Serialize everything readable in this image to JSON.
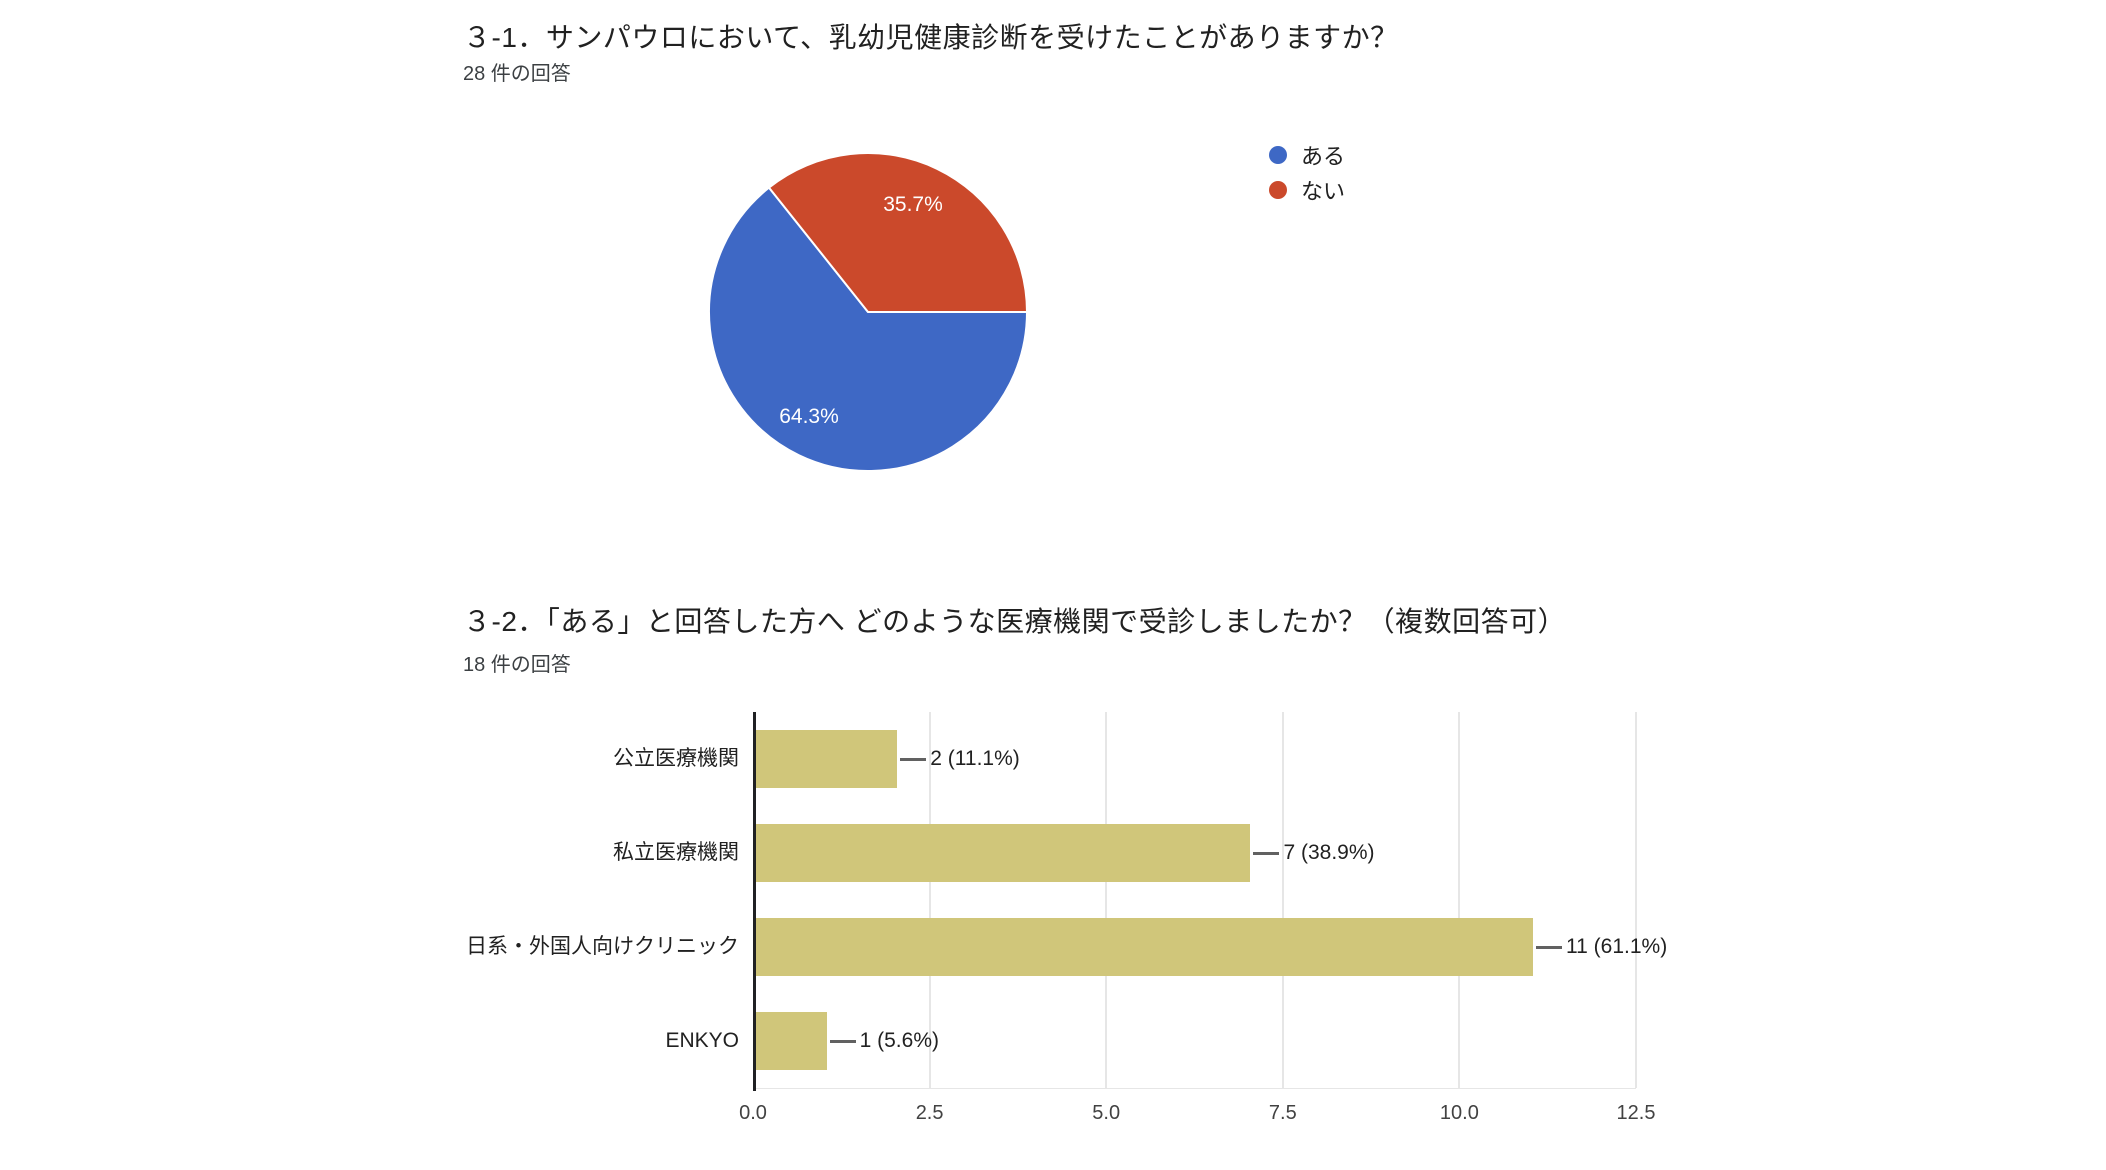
{
  "q1": {
    "title": "３-1．サンパウロにおいて、乳幼児健康診断を受けたことがありますか？",
    "responses_text": "28 件の回答",
    "responses_count": 28
  },
  "q2": {
    "title": "３-2．「ある」と回答した方へ どのような医療機関で受診しましたか？（複数回答可）",
    "responses_text": "18 件の回答",
    "responses_count": 18
  },
  "chart_data": [
    {
      "type": "pie",
      "title": "３-1．サンパウロにおいて、乳幼児健康診断を受けたことがありますか？",
      "subtitle": "28 件の回答",
      "labels": [
        "ある",
        "ない"
      ],
      "values_pct": [
        64.3,
        35.7
      ],
      "slice_labels": [
        "64.3%",
        "35.7%"
      ],
      "colors": [
        "#3e68c5",
        "#cb492b"
      ],
      "start_angle_deg": 0,
      "direction": "clockwise",
      "legend_position": "right",
      "slice_border_color": "#ffffff"
    },
    {
      "type": "bar",
      "orientation": "horizontal",
      "title": "３-2．「ある」と回答した方へ どのような医療機関で受診しましたか？（複数回答可）",
      "subtitle": "18 件の回答",
      "categories": [
        "公立医療機関",
        "私立医療機関",
        "日系・外国人向けクリニック",
        "ENKYO"
      ],
      "values": [
        2,
        7,
        11,
        1
      ],
      "value_labels": [
        "2 (11.1%)",
        "7 (38.9%)",
        "11 (61.1%)",
        "1 (5.6%)"
      ],
      "bar_color": "#d0c67a",
      "xlim": [
        0,
        12.5
      ],
      "xticks": [
        "0.0",
        "2.5",
        "5.0",
        "7.5",
        "10.0",
        "12.5"
      ],
      "grid": true,
      "gridline_color": "#e6e6e6",
      "axis_color": "#202124",
      "connector_color": "#616161"
    }
  ]
}
